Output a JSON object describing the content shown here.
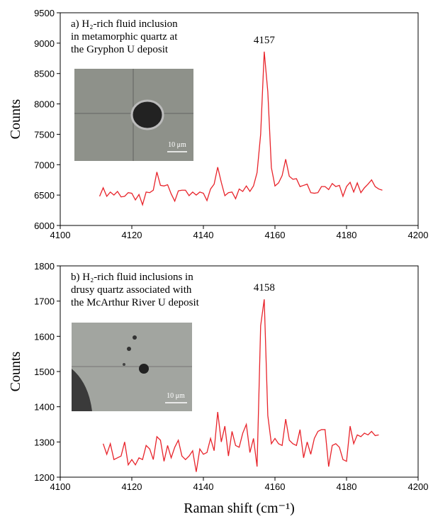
{
  "chart_data": [
    {
      "type": "line",
      "annotation": [
        "a) H₂-rich fluid inclusion",
        "in metamorphic quartz at",
        "the Gryphon U deposit"
      ],
      "peak_label": "4157",
      "image_scale_label": "10 μm",
      "ylabel": "Counts",
      "xlim": [
        4100,
        4200
      ],
      "xticks": [
        4100,
        4120,
        4140,
        4160,
        4180,
        4200
      ],
      "ylim": [
        6000,
        9500
      ],
      "yticks": [
        6000,
        6500,
        7000,
        7500,
        8000,
        8500,
        9000,
        9500
      ],
      "series": [
        {
          "color": "#e8232a",
          "x": [
            4111,
            4112,
            4113,
            4114,
            4115,
            4116,
            4117,
            4118,
            4119,
            4120,
            4121,
            4122,
            4123,
            4124,
            4125,
            4126,
            4127,
            4128,
            4129,
            4130,
            4131,
            4132,
            4133,
            4134,
            4135,
            4136,
            4137,
            4138,
            4139,
            4140,
            4141,
            4142,
            4143,
            4144,
            4145,
            4146,
            4147,
            4148,
            4149,
            4150,
            4151,
            4152,
            4153,
            4154,
            4155,
            4156,
            4157,
            4158,
            4159,
            4160,
            4161,
            4162,
            4163,
            4164,
            4165,
            4166,
            4167,
            4168,
            4169,
            4170,
            4171,
            4172,
            4173,
            4174,
            4175,
            4176,
            4177,
            4178,
            4179,
            4180,
            4181,
            4182,
            4183,
            4184,
            4185,
            4186,
            4187,
            4188,
            4189,
            4190
          ],
          "values": [
            6480,
            6620,
            6480,
            6550,
            6500,
            6560,
            6470,
            6480,
            6540,
            6530,
            6420,
            6510,
            6340,
            6550,
            6540,
            6580,
            6880,
            6660,
            6650,
            6670,
            6520,
            6400,
            6570,
            6580,
            6580,
            6490,
            6550,
            6500,
            6550,
            6530,
            6410,
            6600,
            6680,
            6960,
            6710,
            6490,
            6540,
            6550,
            6440,
            6600,
            6560,
            6650,
            6560,
            6650,
            6870,
            7500,
            8860,
            8200,
            6950,
            6650,
            6700,
            6820,
            7090,
            6810,
            6760,
            6770,
            6640,
            6660,
            6680,
            6540,
            6530,
            6540,
            6640,
            6640,
            6590,
            6690,
            6640,
            6660,
            6480,
            6640,
            6710,
            6550,
            6700,
            6540,
            6620,
            6680,
            6750,
            6640,
            6600,
            6580
          ]
        }
      ]
    },
    {
      "type": "line",
      "annotation": [
        "b) H₂-rich fluid inclusions in",
        "drusy quartz associated with",
        "the McArthur River U deposit"
      ],
      "peak_label": "4158",
      "image_scale_label": "10 μm",
      "ylabel": "Counts",
      "xlabel": "Raman shift (cm⁻¹)",
      "xlim": [
        4100,
        4200
      ],
      "xticks": [
        4100,
        4120,
        4140,
        4160,
        4180,
        4200
      ],
      "ylim": [
        1200,
        1800
      ],
      "yticks": [
        1200,
        1300,
        1400,
        1500,
        1600,
        1700,
        1800
      ],
      "series": [
        {
          "color": "#e8232a",
          "x": [
            4112,
            4113,
            4114,
            4115,
            4116,
            4117,
            4118,
            4119,
            4120,
            4121,
            4122,
            4123,
            4124,
            4125,
            4126,
            4127,
            4128,
            4129,
            4130,
            4131,
            4132,
            4133,
            4134,
            4135,
            4136,
            4137,
            4138,
            4139,
            4140,
            4141,
            4142,
            4143,
            4144,
            4145,
            4146,
            4147,
            4148,
            4149,
            4150,
            4151,
            4152,
            4153,
            4154,
            4155,
            4156,
            4157,
            4158,
            4159,
            4160,
            4161,
            4162,
            4163,
            4164,
            4165,
            4166,
            4167,
            4168,
            4169,
            4170,
            4171,
            4172,
            4173,
            4174,
            4175,
            4176,
            4177,
            4178,
            4179,
            4180,
            4181,
            4182,
            4183,
            4184,
            4185,
            4186,
            4187,
            4188,
            4189
          ],
          "values": [
            1295,
            1265,
            1295,
            1250,
            1255,
            1260,
            1300,
            1235,
            1250,
            1235,
            1255,
            1250,
            1290,
            1280,
            1250,
            1315,
            1305,
            1245,
            1290,
            1255,
            1285,
            1305,
            1260,
            1250,
            1260,
            1275,
            1215,
            1280,
            1265,
            1270,
            1310,
            1275,
            1385,
            1300,
            1345,
            1260,
            1330,
            1290,
            1285,
            1325,
            1350,
            1270,
            1310,
            1230,
            1630,
            1705,
            1375,
            1295,
            1310,
            1295,
            1290,
            1365,
            1305,
            1295,
            1290,
            1335,
            1255,
            1300,
            1265,
            1310,
            1330,
            1335,
            1335,
            1230,
            1290,
            1295,
            1285,
            1250,
            1245,
            1345,
            1295,
            1320,
            1315,
            1325,
            1320,
            1330,
            1318,
            1320
          ]
        }
      ]
    }
  ]
}
